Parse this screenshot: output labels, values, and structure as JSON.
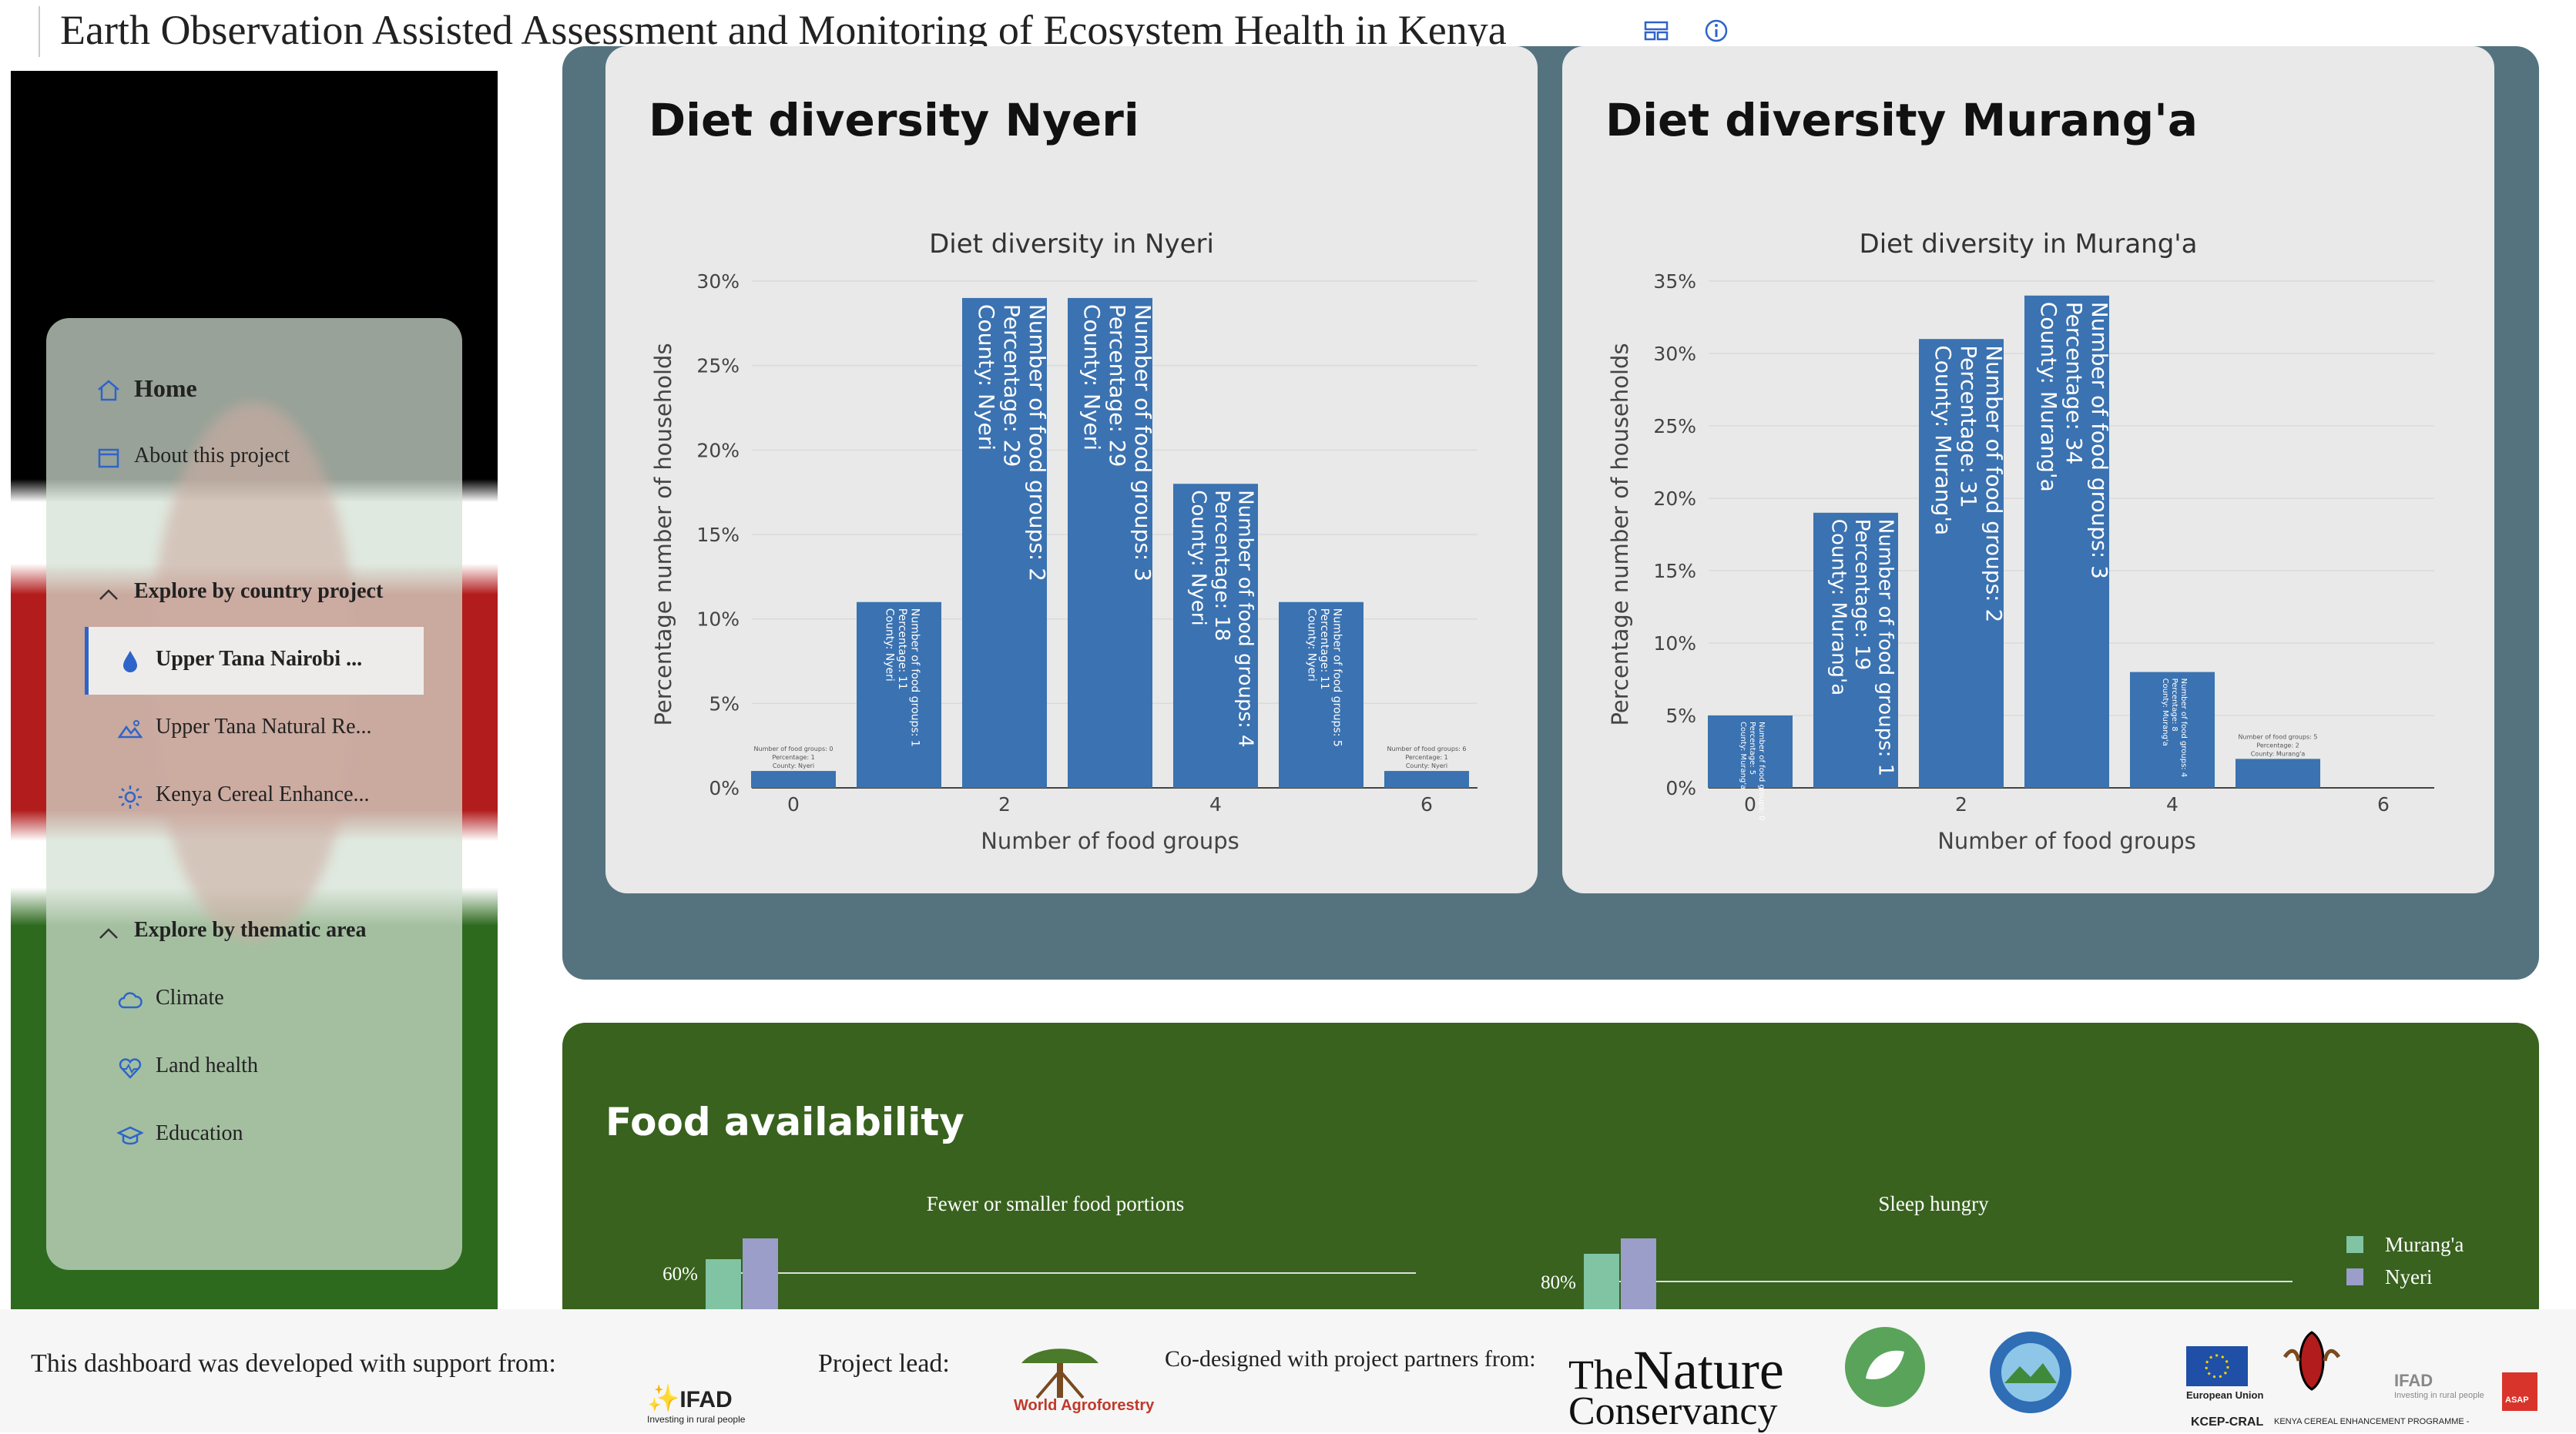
{
  "app": {
    "title": "Earth Observation Assisted Assessment and Monitoring of Ecosystem Health in Kenya"
  },
  "icons": {
    "layout": "layout-icon",
    "info": "info-icon"
  },
  "sidebar": {
    "home": "Home",
    "about": "About this project",
    "section_country": "Explore by country project",
    "country_items": [
      {
        "label": "Upper Tana Nairobi ...",
        "icon": "water-drop-icon",
        "active": true
      },
      {
        "label": "Upper Tana Natural Re...",
        "icon": "landscape-icon",
        "active": false
      },
      {
        "label": "Kenya Cereal Enhance...",
        "icon": "sun-icon",
        "active": false
      }
    ],
    "section_thematic": "Explore by thematic area",
    "thematic_items": [
      {
        "label": "Climate",
        "icon": "cloud-icon"
      },
      {
        "label": "Land health",
        "icon": "heart-pulse-icon"
      },
      {
        "label": "Education",
        "icon": "graduation-cap-icon"
      }
    ]
  },
  "colors": {
    "bar": "#3b72b1",
    "diet_panel": "#55737f",
    "food_panel": "#38621e",
    "muranga": "#80c4a3",
    "nyeri": "#9a9ec9"
  },
  "diet": {
    "nyeri_title": "Diet diversity Nyeri",
    "muranga_title": "Diet diversity Murang'a"
  },
  "chart_data": [
    {
      "type": "bar",
      "title": "Diet diversity in Nyeri",
      "xlabel": "Number of food groups",
      "ylabel": "Percentage number of households",
      "x": [
        0,
        1,
        2,
        3,
        4,
        5,
        6
      ],
      "values": [
        1,
        11,
        29,
        29,
        18,
        11,
        1
      ],
      "county": "Nyeri",
      "x_ticks": [
        "0",
        "2",
        "4",
        "6"
      ],
      "y_ticks": [
        "0%",
        "5%",
        "10%",
        "15%",
        "20%",
        "25%",
        "30%"
      ],
      "ylim": [
        0,
        30
      ],
      "bar_labels": [
        [
          "Number of food groups: 0",
          "Percentage: 1",
          "County: Nyeri"
        ],
        [
          "Number of food groups: 1",
          "Percentage: 11",
          "County: Nyeri"
        ],
        [
          "Number of food groups: 2",
          "Percentage: 29",
          "County: Nyeri"
        ],
        [
          "Number of food groups: 3",
          "Percentage: 29",
          "County: Nyeri"
        ],
        [
          "Number of food groups: 4",
          "Percentage: 18",
          "County: Nyeri"
        ],
        [
          "Number of food groups: 5",
          "Percentage: 11",
          "County: Nyeri"
        ],
        [
          "Number of food groups: 6",
          "Percentage: 1",
          "County: Nyeri"
        ]
      ]
    },
    {
      "type": "bar",
      "title": "Diet diversity in Murang'a",
      "xlabel": "Number of food groups",
      "ylabel": "Percentage number of households",
      "x": [
        0,
        1,
        2,
        3,
        4,
        5
      ],
      "values": [
        5,
        19,
        31,
        34,
        8,
        2
      ],
      "county": "Murang'a",
      "x_ticks": [
        "0",
        "2",
        "4",
        "6"
      ],
      "y_ticks": [
        "0%",
        "5%",
        "10%",
        "15%",
        "20%",
        "25%",
        "30%",
        "35%"
      ],
      "ylim": [
        0,
        35
      ],
      "bar_labels": [
        [
          "Number of food groups: 0",
          "Percentage: 5",
          "County: Murang'a"
        ],
        [
          "Number of food groups: 1",
          "Percentage: 19",
          "County: Murang'a"
        ],
        [
          "Number of food groups: 2",
          "Percentage: 31",
          "County: Murang'a"
        ],
        [
          "Number of food groups: 3",
          "Percentage: 34",
          "County: Murang'a"
        ],
        [
          "Number of food groups: 4",
          "Percentage: 8",
          "County: Murang'a"
        ],
        [
          "Number of food groups: 5",
          "Percentage: 2",
          "County: Murang'a"
        ]
      ]
    },
    {
      "type": "bar",
      "title": "Fewer or smaller food portions",
      "y_ticks_visible": [
        "60%"
      ],
      "series": [
        {
          "name": "Murang'a"
        },
        {
          "name": "Nyeri"
        }
      ]
    },
    {
      "type": "bar",
      "title": "Sleep hungry",
      "y_ticks_visible": [
        "80%"
      ],
      "series": [
        {
          "name": "Murang'a"
        },
        {
          "name": "Nyeri"
        }
      ]
    }
  ],
  "food": {
    "title": "Food availability",
    "legend": [
      "Murang'a",
      "Nyeri"
    ]
  },
  "footer": {
    "support": "This dashboard was developed with support from:",
    "lead": "Project lead:",
    "codesigned": "Co-designed with project partners from:",
    "ifad": "IFAD",
    "ifad_tag": "Investing in rural people",
    "world_agro": "World Agroforestry",
    "nature_the": "The",
    "nature_nature": "Nature",
    "nature_cons": "Conservancy",
    "eu": "European Union",
    "kcep": "KCEP-CRAL",
    "kcep_full": "KENYA CEREAL ENHANCEMENT PROGRAMME -",
    "ifad2": "IFAD",
    "ifad2_tag": "Investing in rural people",
    "asap": "ASAP"
  }
}
